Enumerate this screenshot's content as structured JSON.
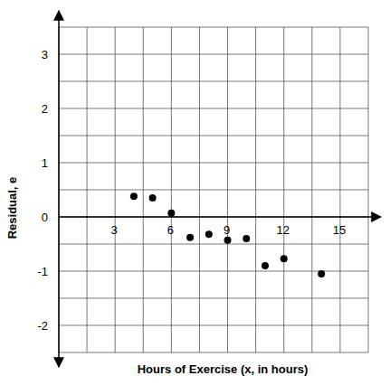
{
  "chart_data": {
    "type": "scatter",
    "x_label": "Hours of Exercise (x, in hours)",
    "y_label": "Residual, e",
    "x": [
      4,
      5,
      6,
      7,
      8,
      9,
      10,
      11,
      12,
      14
    ],
    "values": [
      0.38,
      0.35,
      0.07,
      -0.38,
      -0.32,
      -0.43,
      -0.4,
      -0.9,
      -0.77,
      -1.05
    ],
    "color": "#000000",
    "marker": "circle",
    "xlim": [
      0,
      16.5
    ],
    "ylim": [
      -2.5,
      3.5
    ],
    "xticks": [
      3,
      6,
      9,
      12,
      15
    ],
    "yticks": [
      -2,
      -1,
      0,
      1,
      2,
      3
    ],
    "grid": true
  }
}
